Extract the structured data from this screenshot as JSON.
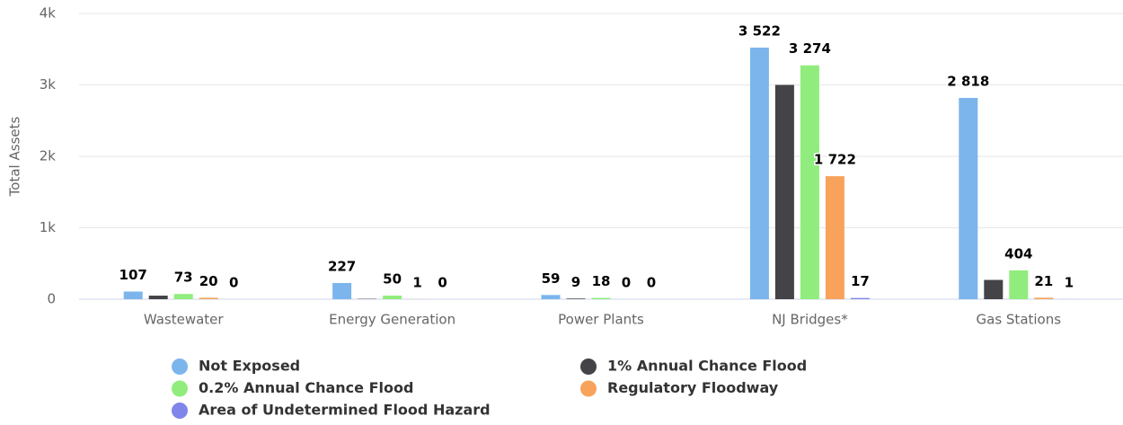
{
  "chart_data": {
    "type": "bar",
    "y_axis_label": "Total Assets",
    "categories": [
      "Wastewater",
      "Energy Generation",
      "Power Plants",
      "NJ Bridges*",
      "Gas Stations"
    ],
    "ylim": [
      0,
      4000
    ],
    "yticks": [
      0,
      {
        "value": 1000,
        "label": "1k"
      },
      {
        "value": 2000,
        "label": "2k"
      },
      {
        "value": 3000,
        "label": "3k"
      },
      {
        "value": 4000,
        "label": "4k"
      }
    ],
    "grid": true,
    "series": [
      {
        "name": "Not Exposed",
        "color": "#7cb5ec",
        "values": [
          107,
          227,
          59,
          3522,
          2818
        ],
        "value_labels": [
          "107",
          "227",
          "59",
          "3 522",
          "2 818"
        ]
      },
      {
        "name": "1% Annual Chance Flood",
        "color": "#434348",
        "values": [
          50,
          5,
          9,
          3000,
          270
        ],
        "value_labels": [
          null,
          null,
          "9",
          null,
          null
        ]
      },
      {
        "name": "0.2% Annual Chance Flood",
        "color": "#90ed7d",
        "values": [
          73,
          50,
          18,
          3274,
          404
        ],
        "value_labels": [
          "73",
          "50",
          "18",
          "3 274",
          "404"
        ]
      },
      {
        "name": "Regulatory Floodway",
        "color": "#f7a35c",
        "values": [
          20,
          1,
          0,
          1722,
          21
        ],
        "value_labels": [
          "20",
          "1",
          "0",
          "1 722",
          "21"
        ]
      },
      {
        "name": "Area of Undetermined Flood Hazard",
        "color": "#8085e9",
        "values": [
          0,
          0,
          0,
          17,
          1
        ],
        "value_labels": [
          "0",
          "0",
          "0",
          "17",
          "1"
        ]
      }
    ]
  }
}
